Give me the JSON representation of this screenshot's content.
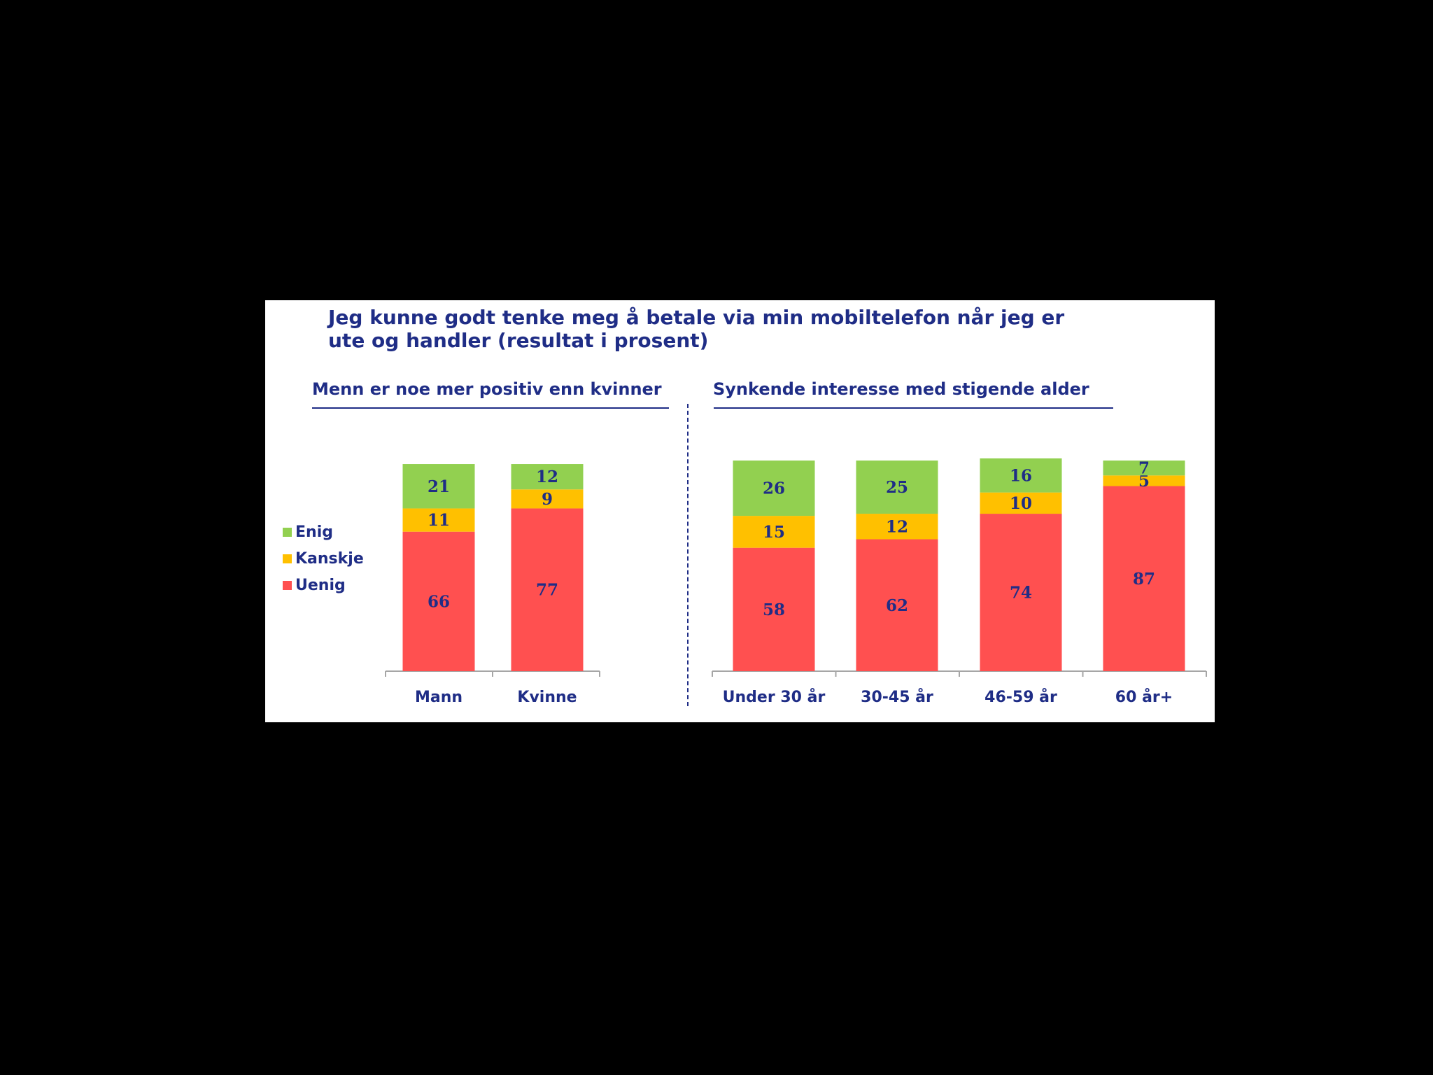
{
  "title": "Jeg kunne godt tenke meg å betale via min mobiltelefon når jeg er ute og handler (resultat i prosent)",
  "colors": {
    "Enig": "#92d050",
    "Kanskje": "#ffc000",
    "Uenig": "#ff5050",
    "text": "#1f2d86"
  },
  "legend": [
    {
      "key": "Enig",
      "label": "Enig"
    },
    {
      "key": "Kanskje",
      "label": "Kanskje"
    },
    {
      "key": "Uenig",
      "label": "Uenig"
    }
  ],
  "chart_data": [
    {
      "type": "bar",
      "stacked": true,
      "title": "Menn er noe mer positiv enn kvinner",
      "categories": [
        "Mann",
        "Kvinne"
      ],
      "series": [
        {
          "name": "Uenig",
          "values": [
            66,
            77
          ]
        },
        {
          "name": "Kanskje",
          "values": [
            11,
            9
          ]
        },
        {
          "name": "Enig",
          "values": [
            21,
            12
          ]
        }
      ],
      "ylim": [
        0,
        100
      ]
    },
    {
      "type": "bar",
      "stacked": true,
      "title": "Synkende interesse med stigende alder",
      "categories": [
        "Under 30 år",
        "30-45 år",
        "46-59 år",
        "60 år+"
      ],
      "series": [
        {
          "name": "Uenig",
          "values": [
            58,
            62,
            74,
            87
          ]
        },
        {
          "name": "Kanskje",
          "values": [
            15,
            12,
            10,
            5
          ]
        },
        {
          "name": "Enig",
          "values": [
            26,
            25,
            16,
            7
          ]
        }
      ],
      "ylim": [
        0,
        100
      ]
    }
  ]
}
